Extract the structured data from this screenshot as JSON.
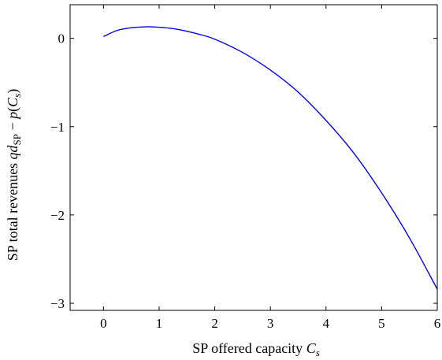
{
  "chart_data": {
    "type": "line",
    "xlabel": "SP offered capacity C_s",
    "xlabel_parts": {
      "prefix": "SP offered capacity ",
      "var": "C",
      "sub": "s"
    },
    "ylabel": "SP total revenues qd_SP − p(C_s)",
    "ylabel_parts": {
      "prefix": "SP total revenues ",
      "qd": "qd",
      "sp": "SP",
      "minus": " − ",
      "p": "p",
      "open": "(",
      "var": "C",
      "sub": "s",
      "close": ")"
    },
    "xlim": [
      -0.6,
      6
    ],
    "ylim": [
      -3.08,
      0.38
    ],
    "xticks": [
      0,
      1,
      2,
      3,
      4,
      5,
      6
    ],
    "xtick_labels": [
      "0",
      "1",
      "2",
      "3",
      "4",
      "5",
      "6"
    ],
    "yticks": [
      0,
      -1,
      -2,
      -3
    ],
    "ytick_labels": [
      "0",
      "−1",
      "−2",
      "−3"
    ],
    "grid": false,
    "series": [
      {
        "color": "#0000ff",
        "x": [
          0,
          0.25,
          0.5,
          0.75,
          0.82,
          1.0,
          1.25,
          1.5,
          1.75,
          2.0,
          2.5,
          3.0,
          3.5,
          4.0,
          4.5,
          5.0,
          5.5,
          6.0
        ],
        "y": [
          0.02,
          0.09,
          0.12,
          0.13,
          0.13,
          0.125,
          0.11,
          0.08,
          0.04,
          -0.01,
          -0.16,
          -0.36,
          -0.61,
          -0.93,
          -1.3,
          -1.75,
          -2.26,
          -2.84
        ]
      }
    ]
  }
}
